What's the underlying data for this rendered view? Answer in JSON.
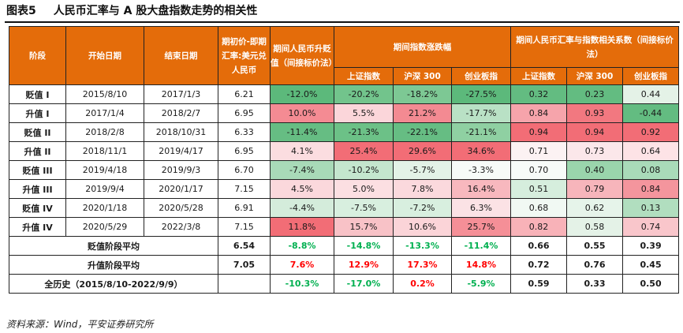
{
  "title": {
    "figure": "图表5",
    "text": "人民币汇率与 A 股大盘指数走势的相关性"
  },
  "headers": {
    "stage": "阶段",
    "start": "开始日期",
    "end": "结束日期",
    "initial_rate": "期初价-即期汇率:美元兑人民币",
    "change": "期间人民币升贬值（间接标价法）",
    "index_group": "期间指数涨跌幅",
    "corr_group": "期间人民币汇率与指数相关系数（间接标价法）",
    "indices": [
      "上证指数",
      "沪深 300",
      "创业板指"
    ]
  },
  "colors": {
    "header_bg": "#e46c0a",
    "positive_text": "#ff0000",
    "negative_text": "#00b050"
  },
  "rows": [
    {
      "stage": "贬值 I",
      "start": "2015/8/10",
      "end": "2017/1/3",
      "rate": "6.21",
      "cells": [
        {
          "v": "-12.0%",
          "c": "#5cb97b"
        },
        {
          "v": "-20.2%",
          "c": "#72c48c"
        },
        {
          "v": "-18.2%",
          "c": "#7dc894"
        },
        {
          "v": "-27.5%",
          "c": "#5cb97b"
        },
        {
          "v": "0.32",
          "c": "#63bc81"
        },
        {
          "v": "0.23",
          "c": "#63bc81"
        },
        {
          "v": "0.44",
          "c": "#e4f2e7"
        }
      ]
    },
    {
      "stage": "升值 I",
      "start": "2017/1/4",
      "end": "2018/2/7",
      "rate": "6.95",
      "cells": [
        {
          "v": "10.0%",
          "c": "#f48b93"
        },
        {
          "v": "5.5%",
          "c": "#fbd6da"
        },
        {
          "v": "21.2%",
          "c": "#f38a92"
        },
        {
          "v": "-17.7%",
          "c": "#b9e1c5"
        },
        {
          "v": "0.84",
          "c": "#f6a4ab"
        },
        {
          "v": "0.93",
          "c": "#f27880"
        },
        {
          "v": "-0.44",
          "c": "#63bc81"
        }
      ]
    },
    {
      "stage": "贬值 II",
      "start": "2018/2/8",
      "end": "2018/10/31",
      "rate": "6.33",
      "cells": [
        {
          "v": "-11.4%",
          "c": "#66bd83"
        },
        {
          "v": "-21.3%",
          "c": "#6cc187"
        },
        {
          "v": "-22.1%",
          "c": "#66bd83"
        },
        {
          "v": "-21.1%",
          "c": "#8fd0a2"
        },
        {
          "v": "0.94",
          "c": "#f26d76"
        },
        {
          "v": "0.94",
          "c": "#f26d76"
        },
        {
          "v": "0.92",
          "c": "#f26d76"
        }
      ]
    },
    {
      "stage": "升值 II",
      "start": "2018/11/1",
      "end": "2019/4/17",
      "rate": "6.95",
      "cells": [
        {
          "v": "4.1%",
          "c": "#fbdde0"
        },
        {
          "v": "25.4%",
          "c": "#f26d76"
        },
        {
          "v": "29.6%",
          "c": "#f26d76"
        },
        {
          "v": "34.6%",
          "c": "#f26d76"
        },
        {
          "v": "0.71",
          "c": "#fcf2f3"
        },
        {
          "v": "0.73",
          "c": "#fbe7ea"
        },
        {
          "v": "0.64",
          "c": "#fde3e6"
        }
      ]
    },
    {
      "stage": "贬值 III",
      "start": "2019/4/18",
      "end": "2019/9/3",
      "rate": "6.70",
      "cells": [
        {
          "v": "-7.4%",
          "c": "#a8dab8"
        },
        {
          "v": "-10.2%",
          "c": "#c4e6ce"
        },
        {
          "v": "-5.7%",
          "c": "#e3f2e7"
        },
        {
          "v": "-3.3%",
          "c": "#f7fbf8"
        },
        {
          "v": "0.70",
          "c": "#f7fbf8"
        },
        {
          "v": "0.40",
          "c": "#9ad5ac"
        },
        {
          "v": "0.08",
          "c": "#a9dbb9"
        }
      ]
    },
    {
      "stage": "升值 III",
      "start": "2019/9/4",
      "end": "2020/1/17",
      "rate": "7.15",
      "cells": [
        {
          "v": "4.5%",
          "c": "#fbd8dc"
        },
        {
          "v": "5.0%",
          "c": "#fcdfe2"
        },
        {
          "v": "7.8%",
          "c": "#fbd9dd"
        },
        {
          "v": "16.4%",
          "c": "#f8b8be"
        },
        {
          "v": "0.51",
          "c": "#d6eedd"
        },
        {
          "v": "0.79",
          "c": "#f7b5bb"
        },
        {
          "v": "0.84",
          "c": "#f4959d"
        }
      ]
    },
    {
      "stage": "贬值 IV",
      "start": "2020/1/18",
      "end": "2020/5/28",
      "rate": "6.91",
      "cells": [
        {
          "v": "-4.4%",
          "c": "#d4ecdb"
        },
        {
          "v": "-7.5%",
          "c": "#d8efdf"
        },
        {
          "v": "-7.2%",
          "c": "#d8efdf"
        },
        {
          "v": "6.3%",
          "c": "#fbe2e5"
        },
        {
          "v": "0.68",
          "c": "#f1f9f3"
        },
        {
          "v": "0.62",
          "c": "#e6f4ea"
        },
        {
          "v": "0.13",
          "c": "#b1deBF"
        }
      ]
    },
    {
      "stage": "升值 IV",
      "start": "2020/5/29",
      "end": "2022/3/8",
      "rate": "7.15",
      "cells": [
        {
          "v": "11.8%",
          "c": "#f26d76"
        },
        {
          "v": "15.7%",
          "c": "#f8c2c7"
        },
        {
          "v": "10.6%",
          "c": "#fbd4d8"
        },
        {
          "v": "25.7%",
          "c": "#f58f97"
        },
        {
          "v": "0.82",
          "c": "#f8b2b8"
        },
        {
          "v": "0.58",
          "c": "#e4f2e7"
        },
        {
          "v": "0.74",
          "c": "#f9c6cb"
        }
      ]
    }
  ],
  "summary": [
    {
      "label": "贬值阶段平均",
      "rate": "6.54",
      "cells": [
        {
          "v": "-8.8%",
          "s": "neg"
        },
        {
          "v": "-14.8%",
          "s": "neg"
        },
        {
          "v": "-13.3%",
          "s": "neg"
        },
        {
          "v": "-11.4%",
          "s": "neg"
        },
        {
          "v": "0.66",
          "s": ""
        },
        {
          "v": "0.55",
          "s": ""
        },
        {
          "v": "0.39",
          "s": ""
        }
      ]
    },
    {
      "label": "升值阶段平均",
      "rate": "7.05",
      "cells": [
        {
          "v": "7.6%",
          "s": "pos"
        },
        {
          "v": "12.9%",
          "s": "pos"
        },
        {
          "v": "17.3%",
          "s": "pos"
        },
        {
          "v": "14.8%",
          "s": "pos"
        },
        {
          "v": "0.72",
          "s": ""
        },
        {
          "v": "0.76",
          "s": ""
        },
        {
          "v": "0.45",
          "s": ""
        }
      ]
    },
    {
      "label": "全历史（2015/8/10-2022/9/9）",
      "rate": "",
      "cells": [
        {
          "v": "-10.3%",
          "s": "neg"
        },
        {
          "v": "-17.0%",
          "s": "neg"
        },
        {
          "v": "0.2%",
          "s": "pos"
        },
        {
          "v": "-5.9%",
          "s": "neg"
        },
        {
          "v": "0.59",
          "s": ""
        },
        {
          "v": "0.33",
          "s": ""
        },
        {
          "v": "0.50",
          "s": ""
        }
      ]
    }
  ],
  "source": "资料来源：Wind，平安证券研究所"
}
